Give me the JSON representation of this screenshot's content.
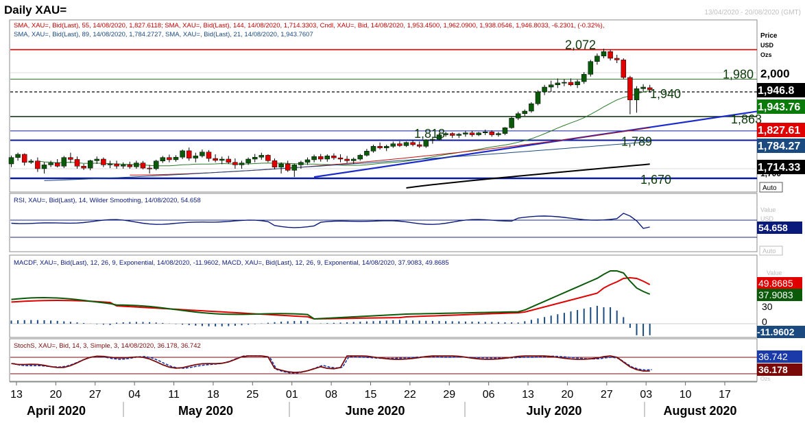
{
  "header": {
    "title": "Daily XAU=",
    "date_range": "13/04/2020 - 20/08/2020 (GMT)"
  },
  "price_panel": {
    "legend_line1": "SMA, XAU=, Bid(Last), 55, 14/08/2020, 1,827.6118; SMA, XAU=, Bid(Last), 144, 14/08/2020, 1,714.3303, Cndl, XAU=, Bid, 14/08/2020, 1,953.4500, 1,962.0900, 1,938.0546, 1,946.8033, -6.2301, (-0.32%),",
    "legend_line2": "SMA, XAU=, Bid(Last), 89, 14/08/2020, 1,784.2727, SMA, XAU=, Bid(Last), 21, 14/08/2020, 1,943.7607",
    "axis_title": [
      "Price",
      "USD",
      "Ozs"
    ],
    "axis_tick": "2,000",
    "axis_tick_partial": "1,700",
    "auto_label": "Auto",
    "tags": [
      {
        "text": "1,946.8",
        "bg": "#000000",
        "fg": "#ffffff",
        "value": 1946.8
      },
      {
        "text": "1,943.76",
        "bg": "#0a7a0a",
        "fg": "#ffffff",
        "value": 1943.76
      },
      {
        "text": "1,827.61",
        "bg": "#e00000",
        "fg": "#ffffff",
        "value": 1827.61
      },
      {
        "text": "1,784.27",
        "bg": "#1a4a80",
        "fg": "#ffffff",
        "value": 1784.27
      },
      {
        "text": "1,714.33",
        "bg": "#000000",
        "fg": "#ffffff",
        "value": 1714.33
      }
    ],
    "levels": [
      {
        "text": "2,072",
        "value": 2072
      },
      {
        "text": "1,980",
        "value": 1980
      },
      {
        "text": "1,940",
        "value": 1940
      },
      {
        "text": "1,863",
        "value": 1863
      },
      {
        "text": "1,818",
        "value": 1818
      },
      {
        "text": "1,789",
        "value": 1789
      },
      {
        "text": "1,670",
        "value": 1670
      }
    ]
  },
  "rsi_panel": {
    "legend": "RSI, XAU=, Bid(Last), 14, Wilder Smoothing, 14/08/2020, 54.658",
    "axis_title": [
      "Value",
      "USD"
    ],
    "tag": "54.658",
    "auto_label": "Auto"
  },
  "macd_panel": {
    "legend": "MACDF, XAU=, Bid(Last), 12, 26, 9, Exponential, 14/08/2020, -11.9602, MACD, XAU=, Bid(Last), 12, 26, 9, Exponential, 14/08/2020, 37.9083, 49.8685",
    "axis_title": "Value",
    "tags": [
      "49.8685",
      "37.9083",
      "-11.9602"
    ],
    "ticks": [
      "30",
      "0"
    ]
  },
  "stoch_panel": {
    "legend": "StochS, XAU=, Bid, 14, 3, Simple, 3, 14/08/2020, 36.178, 36.742",
    "tags": [
      "36.742",
      "36.178"
    ],
    "axis_title": "Ozs"
  },
  "x_axis": {
    "day_labels": [
      "13",
      "20",
      "27",
      "04",
      "11",
      "18",
      "25",
      "01",
      "08",
      "15",
      "22",
      "29",
      "06",
      "13",
      "20",
      "27",
      "03",
      "10",
      "17"
    ],
    "month_labels": [
      "April 2020",
      "May 2020",
      "June 2020",
      "July 2020",
      "August 2020"
    ]
  },
  "chart_data": {
    "type": "candlestick",
    "title": "Daily XAU=",
    "symbol": "XAU=",
    "date_range": "13/04/2020 - 20/08/2020",
    "ylim": [
      1655,
      2090
    ],
    "candles": [
      [
        1715,
        1741,
        1705,
        1735
      ],
      [
        1735,
        1750,
        1725,
        1745
      ],
      [
        1745,
        1748,
        1710,
        1720
      ],
      [
        1720,
        1730,
        1715,
        1724
      ],
      [
        1724,
        1735,
        1690,
        1700
      ],
      [
        1700,
        1720,
        1685,
        1712
      ],
      [
        1712,
        1725,
        1705,
        1718
      ],
      [
        1718,
        1730,
        1704,
        1708
      ],
      [
        1708,
        1740,
        1702,
        1735
      ],
      [
        1735,
        1750,
        1718,
        1729
      ],
      [
        1729,
        1738,
        1700,
        1708
      ],
      [
        1708,
        1715,
        1696,
        1702
      ],
      [
        1702,
        1728,
        1695,
        1725
      ],
      [
        1725,
        1738,
        1715,
        1730
      ],
      [
        1730,
        1735,
        1705,
        1712
      ],
      [
        1712,
        1725,
        1702,
        1715
      ],
      [
        1715,
        1725,
        1700,
        1708
      ],
      [
        1708,
        1720,
        1700,
        1712
      ],
      [
        1712,
        1722,
        1700,
        1706
      ],
      [
        1706,
        1725,
        1700,
        1718
      ],
      [
        1718,
        1724,
        1698,
        1702
      ],
      [
        1702,
        1712,
        1685,
        1700
      ],
      [
        1700,
        1728,
        1695,
        1724
      ],
      [
        1724,
        1740,
        1718,
        1735
      ],
      [
        1735,
        1744,
        1720,
        1728
      ],
      [
        1728,
        1742,
        1722,
        1736
      ],
      [
        1736,
        1760,
        1730,
        1756
      ],
      [
        1756,
        1766,
        1725,
        1733
      ],
      [
        1733,
        1750,
        1720,
        1740
      ],
      [
        1740,
        1760,
        1735,
        1752
      ],
      [
        1752,
        1758,
        1722,
        1732
      ],
      [
        1732,
        1745,
        1720,
        1726
      ],
      [
        1726,
        1738,
        1714,
        1730
      ],
      [
        1730,
        1740,
        1715,
        1720
      ],
      [
        1720,
        1732,
        1700,
        1712
      ],
      [
        1712,
        1725,
        1700,
        1718
      ],
      [
        1718,
        1735,
        1712,
        1730
      ],
      [
        1730,
        1746,
        1720,
        1736
      ],
      [
        1736,
        1750,
        1728,
        1742
      ],
      [
        1742,
        1745,
        1720,
        1725
      ],
      [
        1725,
        1732,
        1698,
        1705
      ],
      [
        1705,
        1720,
        1685,
        1715
      ],
      [
        1715,
        1725,
        1690,
        1695
      ],
      [
        1695,
        1715,
        1674,
        1712
      ],
      [
        1712,
        1725,
        1700,
        1720
      ],
      [
        1720,
        1735,
        1712,
        1728
      ],
      [
        1728,
        1744,
        1720,
        1738
      ],
      [
        1738,
        1746,
        1722,
        1730
      ],
      [
        1730,
        1745,
        1722,
        1740
      ],
      [
        1740,
        1748,
        1728,
        1734
      ],
      [
        1734,
        1745,
        1720,
        1730
      ],
      [
        1730,
        1740,
        1718,
        1725
      ],
      [
        1725,
        1735,
        1715,
        1730
      ],
      [
        1730,
        1746,
        1725,
        1742
      ],
      [
        1742,
        1762,
        1738,
        1755
      ],
      [
        1755,
        1775,
        1750,
        1770
      ],
      [
        1770,
        1782,
        1760,
        1765
      ],
      [
        1765,
        1775,
        1755,
        1770
      ],
      [
        1770,
        1785,
        1765,
        1778
      ],
      [
        1778,
        1786,
        1768,
        1772
      ],
      [
        1772,
        1785,
        1768,
        1782
      ],
      [
        1782,
        1788,
        1770,
        1775
      ],
      [
        1775,
        1785,
        1765,
        1770
      ],
      [
        1770,
        1792,
        1765,
        1790
      ],
      [
        1790,
        1800,
        1778,
        1792
      ],
      [
        1792,
        1812,
        1788,
        1806
      ],
      [
        1806,
        1815,
        1800,
        1810
      ],
      [
        1810,
        1814,
        1796,
        1804
      ],
      [
        1804,
        1812,
        1796,
        1808
      ],
      [
        1808,
        1818,
        1800,
        1812
      ],
      [
        1812,
        1818,
        1800,
        1806
      ],
      [
        1806,
        1815,
        1802,
        1812
      ],
      [
        1812,
        1822,
        1805,
        1815
      ],
      [
        1815,
        1820,
        1800,
        1806
      ],
      [
        1806,
        1815,
        1800,
        1810
      ],
      [
        1810,
        1830,
        1805,
        1828
      ],
      [
        1828,
        1862,
        1825,
        1858
      ],
      [
        1858,
        1878,
        1852,
        1872
      ],
      [
        1872,
        1885,
        1865,
        1880
      ],
      [
        1880,
        1908,
        1875,
        1903
      ],
      [
        1903,
        1945,
        1898,
        1940
      ],
      [
        1940,
        1962,
        1930,
        1955
      ],
      [
        1955,
        1975,
        1940,
        1962
      ],
      [
        1962,
        1982,
        1952,
        1968
      ],
      [
        1968,
        1980,
        1958,
        1970
      ],
      [
        1970,
        1982,
        1958,
        1962
      ],
      [
        1962,
        1978,
        1952,
        1972
      ],
      [
        1972,
        2002,
        1965,
        1995
      ],
      [
        1995,
        2040,
        1988,
        2035
      ],
      [
        2035,
        2060,
        2025,
        2052
      ],
      [
        2052,
        2075,
        2045,
        2066
      ],
      [
        2066,
        2072,
        2038,
        2045
      ],
      [
        2045,
        2056,
        2030,
        2040
      ],
      [
        2040,
        2045,
        1980,
        1985
      ],
      [
        1985,
        1990,
        1870,
        1915
      ],
      [
        1915,
        1958,
        1875,
        1950
      ],
      [
        1950,
        1964,
        1940,
        1955
      ],
      [
        1953,
        1962,
        1938,
        1946.8
      ]
    ],
    "series": [
      {
        "name": "SMA 21",
        "last": 1943.7607
      },
      {
        "name": "SMA 55",
        "last": 1827.6118
      },
      {
        "name": "SMA 89",
        "last": 1784.2727
      },
      {
        "name": "SMA 144",
        "last": 1714.3303
      }
    ],
    "rsi": {
      "period": 14,
      "last": 54.658
    },
    "macd": {
      "fast": 12,
      "slow": 26,
      "signal": 9,
      "macd": 37.9083,
      "signal_value": 49.8685,
      "histogram": -11.9602
    },
    "stochastic": {
      "k": 36.178,
      "d": 36.742
    }
  }
}
